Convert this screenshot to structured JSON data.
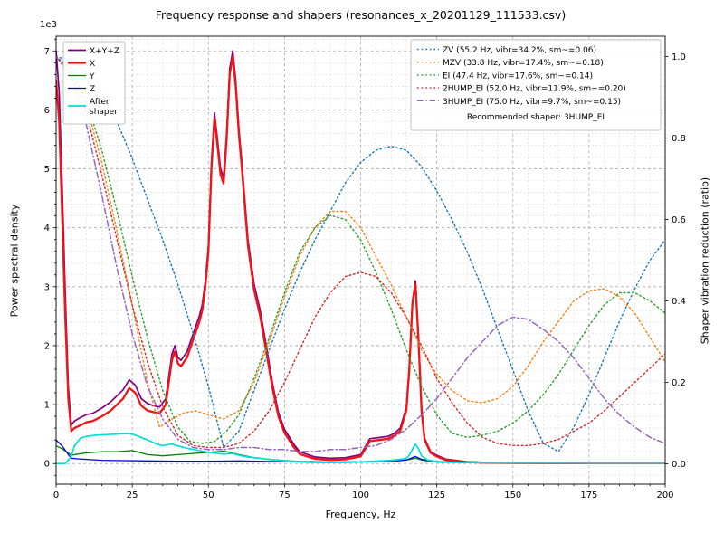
{
  "figure": {
    "title": "Frequency response and shapers (resonances_x_20201129_111533.csv)",
    "xlabel": "Frequency, Hz",
    "ylabel_left": "Power spectral density",
    "ylabel_right": "Shaper vibration reduction (ratio)",
    "offset_text": "1e3"
  },
  "chart_data": {
    "type": "line",
    "title": "Frequency response and shapers (resonances_x_20201129_111533.csv)",
    "xlabel": "Frequency, Hz",
    "ylabel_left": "Power spectral density",
    "ylabel_right": "Shaper vibration reduction (ratio)",
    "offset_text": "1e3",
    "xlim": [
      0,
      200
    ],
    "ylim_left": [
      -350,
      7250
    ],
    "ylim_right": [
      -0.05,
      1.05
    ],
    "xticks": [
      0,
      25,
      50,
      75,
      100,
      125,
      150,
      175,
      200
    ],
    "yticks_left": {
      "values": [
        0,
        1000,
        2000,
        3000,
        4000,
        5000,
        6000,
        7000
      ],
      "labels": [
        "0",
        "1",
        "2",
        "3",
        "4",
        "5",
        "6",
        "7"
      ],
      "multiplier": "1e3"
    },
    "yticks_right": {
      "values": [
        0,
        0.2,
        0.4,
        0.6,
        0.8,
        1.0
      ],
      "labels": [
        "0.0",
        "0.2",
        "0.4",
        "0.6",
        "0.8",
        "1.0"
      ]
    },
    "minor_x_step": 5,
    "minor_y_step": 200,
    "grid": true,
    "legend_note": "Recommended shaper: 3HUMP_EI",
    "recommended_shaper": "3HUMP_EI",
    "series": [
      {
        "name": "X+Y+Z",
        "label": "X+Y+Z",
        "legend": "left",
        "axis": "left",
        "color": "#800080",
        "lw": 1.7,
        "style": "solid",
        "x": [
          0,
          1,
          2,
          3,
          4,
          5,
          6,
          8,
          10,
          12,
          15,
          18,
          20,
          22,
          24,
          26,
          28,
          30,
          32,
          34,
          36,
          38,
          39,
          40,
          41,
          43,
          45,
          47,
          48,
          49,
          50,
          51,
          52,
          53,
          54,
          55,
          56,
          57,
          58,
          59,
          60,
          61,
          63,
          65,
          67,
          69,
          71,
          73,
          75,
          78,
          80,
          85,
          90,
          95,
          100,
          103,
          106,
          109,
          111,
          113,
          115,
          116,
          117,
          118,
          119,
          120,
          121,
          123,
          125,
          128,
          131,
          135,
          140,
          150,
          160,
          175,
          200
        ],
        "values": [
          7000,
          6300,
          4700,
          2900,
          1300,
          650,
          720,
          780,
          830,
          850,
          940,
          1050,
          1150,
          1250,
          1420,
          1330,
          1100,
          1020,
          980,
          960,
          1100,
          1850,
          2000,
          1800,
          1750,
          1900,
          2200,
          2500,
          2700,
          3100,
          3700,
          5100,
          5950,
          5500,
          5000,
          4850,
          5600,
          6700,
          7000,
          6500,
          5700,
          5100,
          3800,
          3050,
          2600,
          2000,
          1380,
          870,
          580,
          330,
          200,
          110,
          90,
          100,
          150,
          420,
          440,
          460,
          510,
          600,
          950,
          1650,
          2750,
          3100,
          2150,
          950,
          430,
          200,
          140,
          75,
          55,
          30,
          20,
          13,
          10,
          10,
          10
        ]
      },
      {
        "name": "X",
        "label": "X",
        "legend": "left",
        "axis": "left",
        "color": "#ef1515",
        "lw": 2.3,
        "style": "solid",
        "x": [
          0,
          1,
          2,
          3,
          4,
          5,
          6,
          8,
          10,
          12,
          15,
          18,
          20,
          22,
          24,
          26,
          28,
          30,
          32,
          34,
          36,
          38,
          39,
          40,
          41,
          43,
          45,
          47,
          48,
          49,
          50,
          51,
          52,
          53,
          54,
          55,
          56,
          57,
          58,
          59,
          60,
          61,
          63,
          65,
          67,
          69,
          71,
          73,
          75,
          78,
          80,
          85,
          90,
          95,
          100,
          103,
          106,
          109,
          111,
          113,
          115,
          116,
          117,
          118,
          119,
          120,
          121,
          123,
          125,
          128,
          131,
          135,
          140,
          150,
          160,
          175,
          200
        ],
        "values": [
          6500,
          5800,
          4200,
          2500,
          1100,
          550,
          600,
          650,
          700,
          720,
          800,
          900,
          1000,
          1100,
          1280,
          1200,
          980,
          900,
          870,
          850,
          1000,
          1750,
          1900,
          1700,
          1650,
          1800,
          2100,
          2400,
          2600,
          3000,
          3600,
          5000,
          5850,
          5400,
          4900,
          4750,
          5500,
          6600,
          6900,
          6400,
          5600,
          5000,
          3700,
          2950,
          2500,
          1900,
          1300,
          800,
          520,
          280,
          160,
          80,
          60,
          70,
          120,
          380,
          400,
          420,
          470,
          550,
          900,
          1600,
          2700,
          3050,
          2100,
          900,
          400,
          180,
          120,
          60,
          45,
          25,
          15,
          10,
          8,
          8,
          8
        ]
      },
      {
        "name": "Y",
        "label": "Y",
        "legend": "left",
        "axis": "left",
        "color": "#008000",
        "lw": 1.3,
        "style": "solid",
        "x": [
          0,
          2,
          4,
          5,
          7,
          10,
          15,
          20,
          25,
          28,
          30,
          35,
          40,
          45,
          50,
          53,
          55,
          57,
          60,
          65,
          70,
          75,
          80,
          90,
          100,
          110,
          115,
          118,
          120,
          125,
          135,
          150,
          175,
          200
        ],
        "values": [
          300,
          250,
          180,
          140,
          160,
          180,
          200,
          200,
          220,
          180,
          150,
          130,
          150,
          170,
          190,
          200,
          210,
          190,
          150,
          100,
          70,
          50,
          35,
          25,
          25,
          35,
          60,
          90,
          60,
          25,
          15,
          10,
          8,
          8
        ]
      },
      {
        "name": "Z",
        "label": "Z",
        "legend": "left",
        "axis": "left",
        "color": "#0000e0",
        "lw": 1.3,
        "style": "solid",
        "x": [
          0,
          2,
          4,
          5,
          7,
          10,
          15,
          20,
          30,
          40,
          50,
          60,
          70,
          80,
          90,
          100,
          110,
          115,
          118,
          120,
          125,
          135,
          150,
          175,
          200
        ],
        "values": [
          400,
          300,
          150,
          90,
          80,
          70,
          55,
          50,
          45,
          40,
          40,
          45,
          35,
          30,
          25,
          30,
          40,
          60,
          120,
          70,
          30,
          20,
          15,
          10,
          10
        ]
      },
      {
        "name": "After shaper",
        "label": "After shaper",
        "label_lines": [
          "After",
          "shaper"
        ],
        "legend": "left",
        "axis": "left",
        "color": "#00dddd",
        "lw": 1.7,
        "style": "solid",
        "x": [
          0,
          3,
          5,
          6,
          8,
          10,
          13,
          16,
          20,
          23,
          25,
          27,
          29,
          31,
          33,
          35,
          38,
          40,
          43,
          46,
          50,
          53,
          55,
          58,
          60,
          63,
          66,
          70,
          75,
          80,
          85,
          90,
          95,
          100,
          105,
          110,
          113,
          115,
          116,
          117,
          118,
          119,
          120,
          122,
          125,
          130,
          140,
          150,
          175,
          200
        ],
        "values": [
          0,
          0,
          120,
          300,
          430,
          460,
          480,
          490,
          500,
          510,
          500,
          460,
          420,
          380,
          330,
          305,
          330,
          300,
          260,
          230,
          190,
          170,
          160,
          170,
          140,
          110,
          95,
          70,
          45,
          28,
          18,
          15,
          18,
          28,
          42,
          55,
          70,
          90,
          140,
          240,
          330,
          250,
          130,
          60,
          35,
          22,
          15,
          12,
          10,
          10
        ]
      },
      {
        "name": "ZV",
        "label": "ZV (55.2 Hz, vibr=34.2%, sm~=0.06)",
        "legend": "right",
        "axis": "right",
        "color": "#1f77b4",
        "lw": 1.4,
        "style": "dotted",
        "x": [
          0,
          5,
          10,
          15,
          20,
          25,
          30,
          35,
          40,
          45,
          50,
          55,
          60,
          65,
          70,
          75,
          80,
          85,
          90,
          95,
          100,
          105,
          110,
          115,
          120,
          125,
          130,
          135,
          140,
          145,
          150,
          155,
          160,
          165,
          170,
          175,
          180,
          185,
          190,
          195,
          200
        ],
        "values": [
          1.0,
          0.99,
          0.96,
          0.91,
          0.84,
          0.75,
          0.65,
          0.55,
          0.44,
          0.32,
          0.19,
          0.04,
          0.08,
          0.18,
          0.28,
          0.38,
          0.47,
          0.55,
          0.62,
          0.69,
          0.74,
          0.77,
          0.78,
          0.77,
          0.73,
          0.67,
          0.6,
          0.52,
          0.43,
          0.33,
          0.23,
          0.13,
          0.05,
          0.03,
          0.09,
          0.17,
          0.26,
          0.35,
          0.43,
          0.5,
          0.55
        ]
      },
      {
        "name": "MZV",
        "label": "MZV (33.8 Hz, vibr=17.4%, sm~=0.18)",
        "legend": "right",
        "axis": "right",
        "color": "#ff7f0e",
        "lw": 1.4,
        "style": "dotted",
        "x": [
          0,
          5,
          10,
          15,
          20,
          25,
          30,
          34,
          38,
          42,
          46,
          50,
          55,
          60,
          65,
          70,
          75,
          80,
          85,
          90,
          95,
          100,
          105,
          110,
          115,
          120,
          125,
          130,
          135,
          140,
          145,
          150,
          155,
          160,
          165,
          170,
          175,
          180,
          185,
          190,
          195,
          200
        ],
        "values": [
          1.0,
          0.97,
          0.88,
          0.74,
          0.57,
          0.39,
          0.2,
          0.09,
          0.11,
          0.125,
          0.13,
          0.12,
          0.11,
          0.13,
          0.2,
          0.3,
          0.41,
          0.51,
          0.58,
          0.62,
          0.62,
          0.58,
          0.51,
          0.44,
          0.36,
          0.28,
          0.22,
          0.18,
          0.155,
          0.15,
          0.16,
          0.19,
          0.24,
          0.3,
          0.35,
          0.4,
          0.425,
          0.43,
          0.41,
          0.37,
          0.31,
          0.25
        ]
      },
      {
        "name": "EI",
        "label": "EI (47.4 Hz, vibr=17.6%, sm~=0.14)",
        "legend": "right",
        "axis": "right",
        "color": "#2ca02c",
        "lw": 1.4,
        "style": "dotted",
        "x": [
          0,
          5,
          10,
          15,
          20,
          25,
          30,
          35,
          40,
          44,
          48,
          52,
          56,
          60,
          65,
          70,
          75,
          80,
          85,
          90,
          95,
          100,
          105,
          110,
          115,
          120,
          125,
          130,
          135,
          140,
          145,
          150,
          155,
          160,
          165,
          170,
          175,
          180,
          185,
          190,
          195,
          200
        ],
        "values": [
          1.0,
          0.97,
          0.89,
          0.77,
          0.62,
          0.46,
          0.31,
          0.18,
          0.09,
          0.055,
          0.05,
          0.055,
          0.08,
          0.12,
          0.21,
          0.31,
          0.42,
          0.52,
          0.58,
          0.61,
          0.6,
          0.55,
          0.47,
          0.38,
          0.28,
          0.19,
          0.12,
          0.075,
          0.065,
          0.07,
          0.08,
          0.1,
          0.13,
          0.17,
          0.22,
          0.28,
          0.34,
          0.39,
          0.42,
          0.42,
          0.4,
          0.37
        ]
      },
      {
        "name": "2HUMP_EI",
        "label": "2HUMP_EI (52.0 Hz, vibr=11.9%, sm~=0.20)",
        "legend": "right",
        "axis": "right",
        "color": "#d62728",
        "lw": 1.4,
        "style": "dotted",
        "x": [
          0,
          5,
          10,
          15,
          20,
          25,
          30,
          35,
          40,
          45,
          50,
          55,
          60,
          65,
          70,
          75,
          80,
          85,
          90,
          95,
          100,
          105,
          110,
          115,
          120,
          125,
          130,
          135,
          140,
          145,
          150,
          155,
          160,
          165,
          170,
          175,
          180,
          185,
          190,
          195,
          200
        ],
        "values": [
          1.0,
          0.96,
          0.86,
          0.71,
          0.55,
          0.39,
          0.25,
          0.14,
          0.07,
          0.045,
          0.04,
          0.04,
          0.05,
          0.08,
          0.13,
          0.2,
          0.28,
          0.36,
          0.42,
          0.46,
          0.47,
          0.46,
          0.42,
          0.36,
          0.29,
          0.21,
          0.15,
          0.1,
          0.065,
          0.05,
          0.045,
          0.045,
          0.05,
          0.06,
          0.08,
          0.1,
          0.13,
          0.165,
          0.2,
          0.235,
          0.27
        ]
      },
      {
        "name": "3HUMP_EI",
        "label": "3HUMP_EI (75.0 Hz, vibr=9.7%, sm~=0.15)",
        "legend": "right",
        "axis": "right",
        "color": "#9467bd",
        "lw": 1.5,
        "style": "dashdot",
        "x": [
          0,
          5,
          10,
          15,
          20,
          25,
          30,
          35,
          40,
          45,
          50,
          55,
          60,
          65,
          70,
          75,
          80,
          85,
          90,
          95,
          100,
          105,
          110,
          115,
          120,
          125,
          130,
          135,
          140,
          145,
          150,
          155,
          160,
          165,
          170,
          175,
          180,
          185,
          190,
          195,
          200
        ],
        "values": [
          1.0,
          0.95,
          0.83,
          0.66,
          0.48,
          0.32,
          0.19,
          0.11,
          0.06,
          0.04,
          0.035,
          0.035,
          0.04,
          0.04,
          0.035,
          0.035,
          0.03,
          0.03,
          0.035,
          0.035,
          0.04,
          0.045,
          0.06,
          0.085,
          0.12,
          0.16,
          0.21,
          0.26,
          0.3,
          0.34,
          0.36,
          0.355,
          0.33,
          0.3,
          0.26,
          0.21,
          0.16,
          0.12,
          0.09,
          0.065,
          0.05
        ]
      }
    ]
  }
}
